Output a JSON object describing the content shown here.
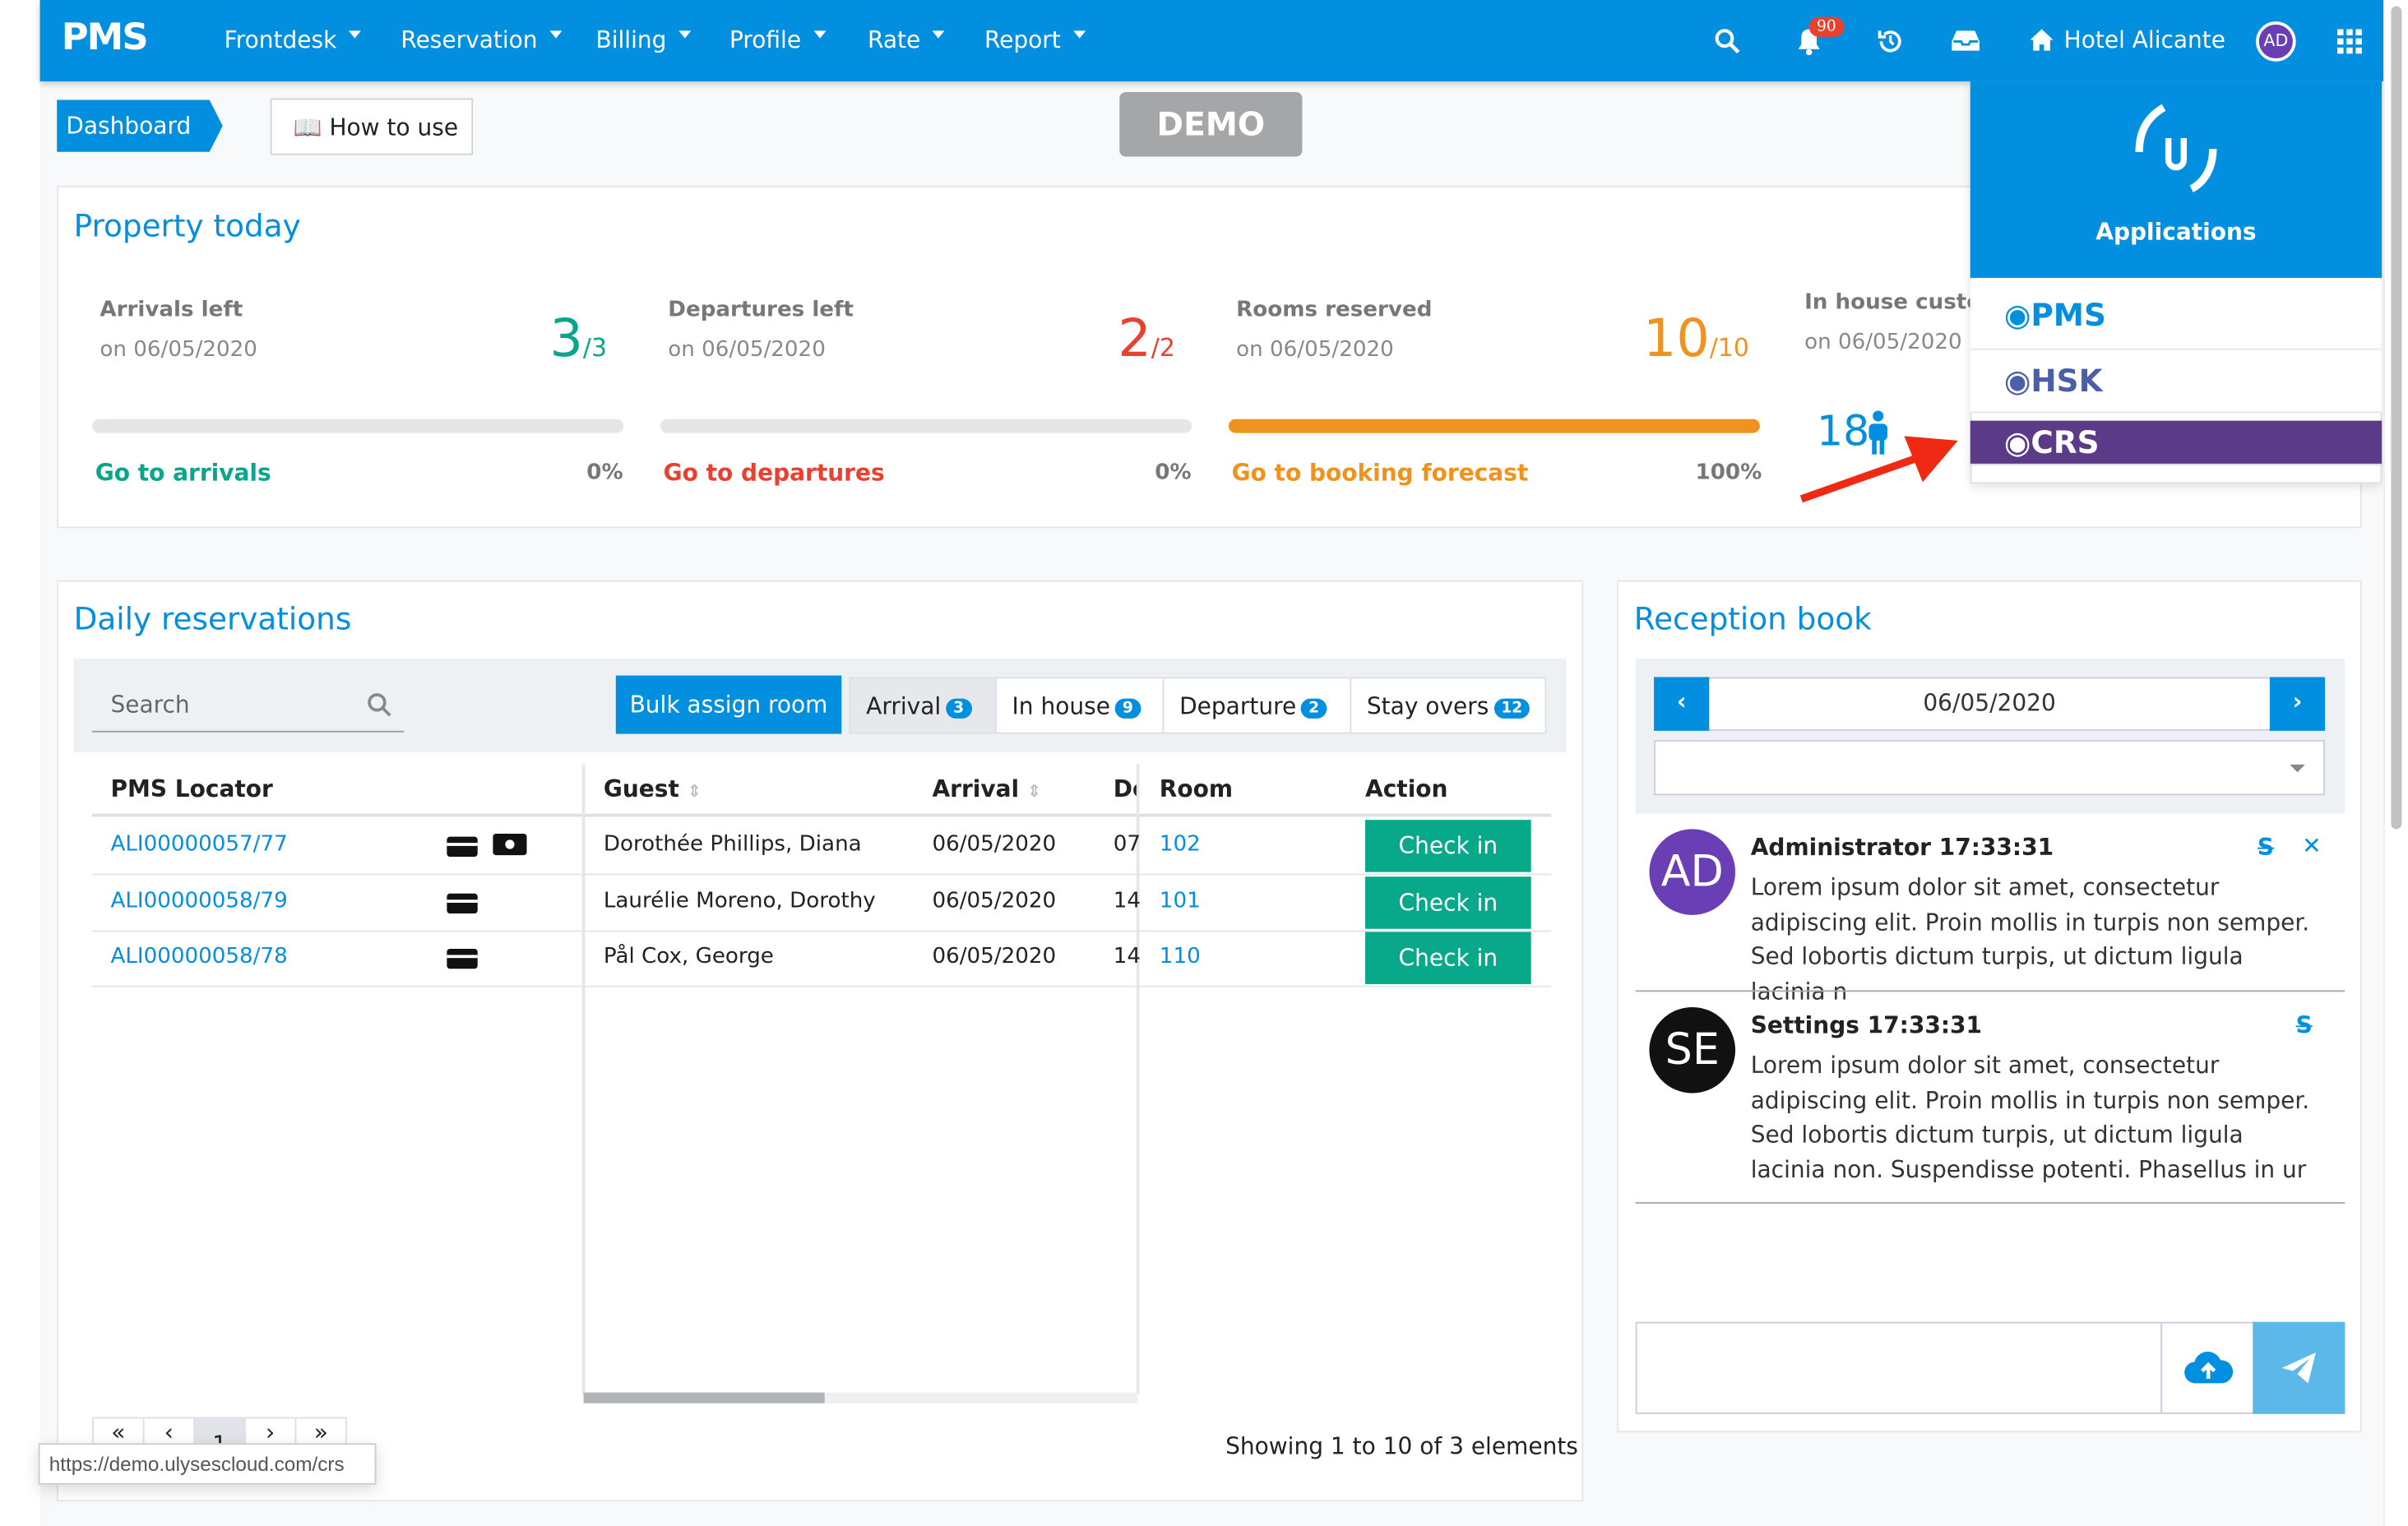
{
  "navbar": {
    "logo": "PMS",
    "menu": [
      "Frontdesk",
      "Reservation",
      "Billing",
      "Profile",
      "Rate",
      "Report"
    ],
    "notifications_count": "90",
    "hotel": "Hotel Alicante",
    "avatar": "AD",
    "brand_color": "#038fe0"
  },
  "breadcrumb": {
    "current": "Dashboard",
    "how_to_use": "How to use"
  },
  "demo_badge": "DEMO",
  "property_today": {
    "title": "Property today",
    "stats": [
      {
        "label": "Arrivals left",
        "date": "on 06/05/2020",
        "value": "3",
        "total": "/3",
        "link": "Go to arrivals",
        "percent": "0%",
        "progress": 0,
        "color": "#0aa58a"
      },
      {
        "label": "Departures left",
        "date": "on 06/05/2020",
        "value": "2",
        "total": "/2",
        "link": "Go to departures",
        "percent": "0%",
        "progress": 0,
        "color": "#e8412f"
      },
      {
        "label": "Rooms reserved",
        "date": "on 06/05/2020",
        "value": "10",
        "total": "/10",
        "link": "Go to booking forecast",
        "percent": "100%",
        "progress": 100,
        "color": "#f0921e"
      },
      {
        "label": "In house custom",
        "date": "on 06/05/2020",
        "value": "18"
      }
    ]
  },
  "applications": {
    "title": "Applications",
    "items": [
      {
        "label": "PMS",
        "color": "#038fe0"
      },
      {
        "label": "HSK",
        "color": "#4a5fa6"
      },
      {
        "label": "CRS",
        "color": "#5b3b87",
        "active": true
      }
    ]
  },
  "daily_reservations": {
    "title": "Daily reservations",
    "search_placeholder": "Search",
    "bulk_assign": "Bulk assign room",
    "tabs": [
      {
        "label": "Arrival",
        "count": "3",
        "active": true
      },
      {
        "label": "In house",
        "count": "9"
      },
      {
        "label": "Departure",
        "count": "2"
      },
      {
        "label": "Stay overs",
        "count": "12"
      }
    ],
    "columns": [
      "PMS Locator",
      "Guest",
      "Arrival",
      "De",
      "Room",
      "Action"
    ],
    "rows": [
      {
        "locator": "ALI00000057/77",
        "guest": "Dorothée Phillips, Diana",
        "arrival": "06/05/2020",
        "departure": "07",
        "room": "102",
        "action": "Check in",
        "cash": true
      },
      {
        "locator": "ALI00000058/79",
        "guest": "Laurélie Moreno, Dorothy",
        "arrival": "06/05/2020",
        "departure": "14",
        "room": "101",
        "action": "Check in"
      },
      {
        "locator": "ALI00000058/78",
        "guest": "Pål Cox, George",
        "arrival": "06/05/2020",
        "departure": "14",
        "room": "110",
        "action": "Check in"
      }
    ],
    "pagination": {
      "current": "1"
    },
    "showing": "Showing 1 to 10 of 3 elements"
  },
  "reception_book": {
    "title": "Reception book",
    "date": "06/05/2020",
    "messages": [
      {
        "avatar": "AD",
        "author": "Administrator 17:33:31",
        "text": "Lorem ipsum dolor sit amet, consectetur adipiscing elit. Proin mollis in turpis non semper. Sed lobortis dictum turpis, ut dictum ligula lacinia n",
        "avatar_color": "#6a3fb5"
      },
      {
        "avatar": "SE",
        "author": "Settings 17:33:31",
        "text": "Lorem ipsum dolor sit amet, consectetur adipiscing elit. Proin mollis in turpis non semper. Sed lobortis dictum turpis, ut dictum ligula lacinia non. Suspendisse potenti. Phasellus in ur",
        "avatar_color": "#111111"
      }
    ]
  },
  "status_url": "https://demo.ulysescloud.com/crs"
}
